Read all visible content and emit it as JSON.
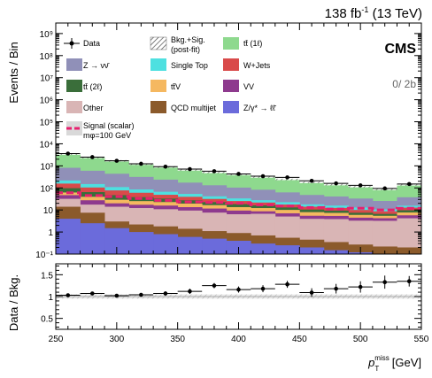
{
  "header": {
    "lumi_text": "138 fb",
    "lumi_sup": "-1",
    "energy": " (13 TeV)",
    "experiment": "CMS",
    "category": "0/ 2b"
  },
  "legend": {
    "data": "Data",
    "unc_line1": "Bkg.+Sig.",
    "unc_line2": "(post-fit)",
    "ttbar_1l": "tt̄ (1ℓ)",
    "znunu": "Z → νν̄",
    "single_top": "Single Top",
    "wjets": "W+Jets",
    "ttbar_2l": "tt̄ (2ℓ)",
    "ttv": "tt̄V",
    "vv": "VV",
    "other": "Other",
    "qcd": "QCD multijet",
    "zll": "Z/γ* → ℓℓ̄",
    "signal_line1": "Signal (scalar)",
    "signal_line2": "mφ=100 GeV"
  },
  "chart_data": [
    {
      "type": "area",
      "title": "",
      "ylabel": "Events / Bin",
      "y_scale": "log",
      "ylim": [
        0.1,
        3000000000
      ],
      "yticks": [
        0.1,
        1,
        10,
        100,
        1000,
        10000,
        100000,
        1000000,
        10000000,
        100000000,
        1000000000
      ],
      "ytick_labels": [
        "10⁻¹",
        "1",
        "10",
        "10²",
        "10³",
        "10⁴",
        "10⁵",
        "10⁶",
        "10⁷",
        "10⁸",
        "10⁹"
      ],
      "xlim": [
        250,
        550
      ],
      "bin_edges": [
        250,
        270,
        290,
        310,
        330,
        350,
        370,
        390,
        410,
        430,
        450,
        470,
        490,
        510,
        530,
        550
      ],
      "stack_order": [
        "zll",
        "qcd",
        "other",
        "vv",
        "ttv",
        "ttbar_2l",
        "wjets",
        "single_top",
        "znunu",
        "ttbar_1l"
      ],
      "series": [
        {
          "key": "zll",
          "color": "#6b6bdb",
          "values": [
            4,
            2.5,
            1.5,
            1,
            0.8,
            0.6,
            0.5,
            0.4,
            0.3,
            0.25,
            0.2,
            0.15,
            0.12,
            0.1,
            0.1
          ]
        },
        {
          "key": "qcd",
          "color": "#8b5a2b",
          "values": [
            10,
            5,
            1.5,
            1.2,
            1,
            0.8,
            0.6,
            0.5,
            0.4,
            0.3,
            0.25,
            0.2,
            0.15,
            0.12,
            0.1
          ]
        },
        {
          "key": "other",
          "color": "#d9b5b5",
          "values": [
            18,
            10,
            11,
            10,
            9,
            8,
            6.5,
            5.5,
            6,
            4.5,
            3.5,
            3.5,
            3,
            3,
            4
          ]
        },
        {
          "key": "vv",
          "color": "#8e3a8e",
          "values": [
            15,
            10,
            6,
            5,
            5,
            4,
            4,
            3,
            2,
            2,
            1.5,
            1.5,
            1.2,
            1,
            1.5
          ]
        },
        {
          "key": "ttv",
          "color": "#f5b860",
          "values": [
            15,
            12,
            9,
            8,
            7,
            6,
            5,
            4,
            3.5,
            3,
            2.5,
            2,
            1.5,
            1.2,
            2
          ]
        },
        {
          "key": "ttbar_2l",
          "color": "#3a6e3a",
          "values": [
            35,
            25,
            18,
            13,
            10,
            8,
            6,
            5,
            4,
            3,
            2.5,
            2,
            1.5,
            1.2,
            2
          ]
        },
        {
          "key": "wjets",
          "color": "#d94a4a",
          "values": [
            60,
            40,
            30,
            22,
            16,
            12,
            9,
            7,
            5.5,
            4.5,
            3.5,
            3,
            2.5,
            2,
            3
          ]
        },
        {
          "key": "single_top",
          "color": "#4ee0e0",
          "values": [
            60,
            45,
            32,
            25,
            18,
            14,
            10,
            8,
            6,
            5,
            4,
            3.5,
            3,
            2,
            3
          ]
        },
        {
          "key": "znunu",
          "color": "#9090b8",
          "values": [
            600,
            450,
            330,
            230,
            170,
            120,
            90,
            70,
            55,
            40,
            30,
            25,
            20,
            15,
            22
          ]
        },
        {
          "key": "ttbar_1l",
          "color": "#8ed98e",
          "values": [
            2600,
            1800,
            1250,
            880,
            650,
            480,
            370,
            300,
            230,
            180,
            130,
            100,
            80,
            60,
            100
          ]
        }
      ],
      "signal": {
        "key": "signal",
        "color": "#e8206e",
        "values": [
          60,
          45,
          40,
          33,
          27,
          23,
          22,
          20,
          17,
          15,
          13,
          11,
          12,
          10,
          12
        ]
      },
      "data": {
        "x": [
          260,
          280,
          300,
          320,
          340,
          360,
          380,
          400,
          420,
          440,
          460,
          480,
          500,
          520,
          540
        ],
        "y": [
          3600,
          2500,
          1700,
          1250,
          920,
          710,
          570,
          430,
          340,
          300,
          210,
          160,
          130,
          95,
          150
        ]
      }
    },
    {
      "type": "scatter",
      "ylabel": "Data / Bkg.",
      "xlabel": "p_T^miss [GeV]",
      "xlim": [
        250,
        550
      ],
      "ylim": [
        0.25,
        1.75
      ],
      "yticks": [
        0.5,
        1,
        1.5
      ],
      "xticks": [
        250,
        300,
        350,
        400,
        450,
        500,
        550
      ],
      "unc_band": 0.05,
      "x": [
        260,
        280,
        300,
        320,
        340,
        360,
        380,
        400,
        420,
        440,
        460,
        480,
        500,
        520,
        540
      ],
      "y": [
        1.03,
        1.07,
        1.02,
        1.04,
        1.07,
        1.12,
        1.25,
        1.16,
        1.18,
        1.28,
        1.09,
        1.18,
        1.22,
        1.33,
        1.35
      ],
      "yerr": [
        0.02,
        0.03,
        0.03,
        0.04,
        0.05,
        0.06,
        0.06,
        0.07,
        0.08,
        0.08,
        0.1,
        0.11,
        0.13,
        0.15,
        0.12
      ]
    }
  ]
}
